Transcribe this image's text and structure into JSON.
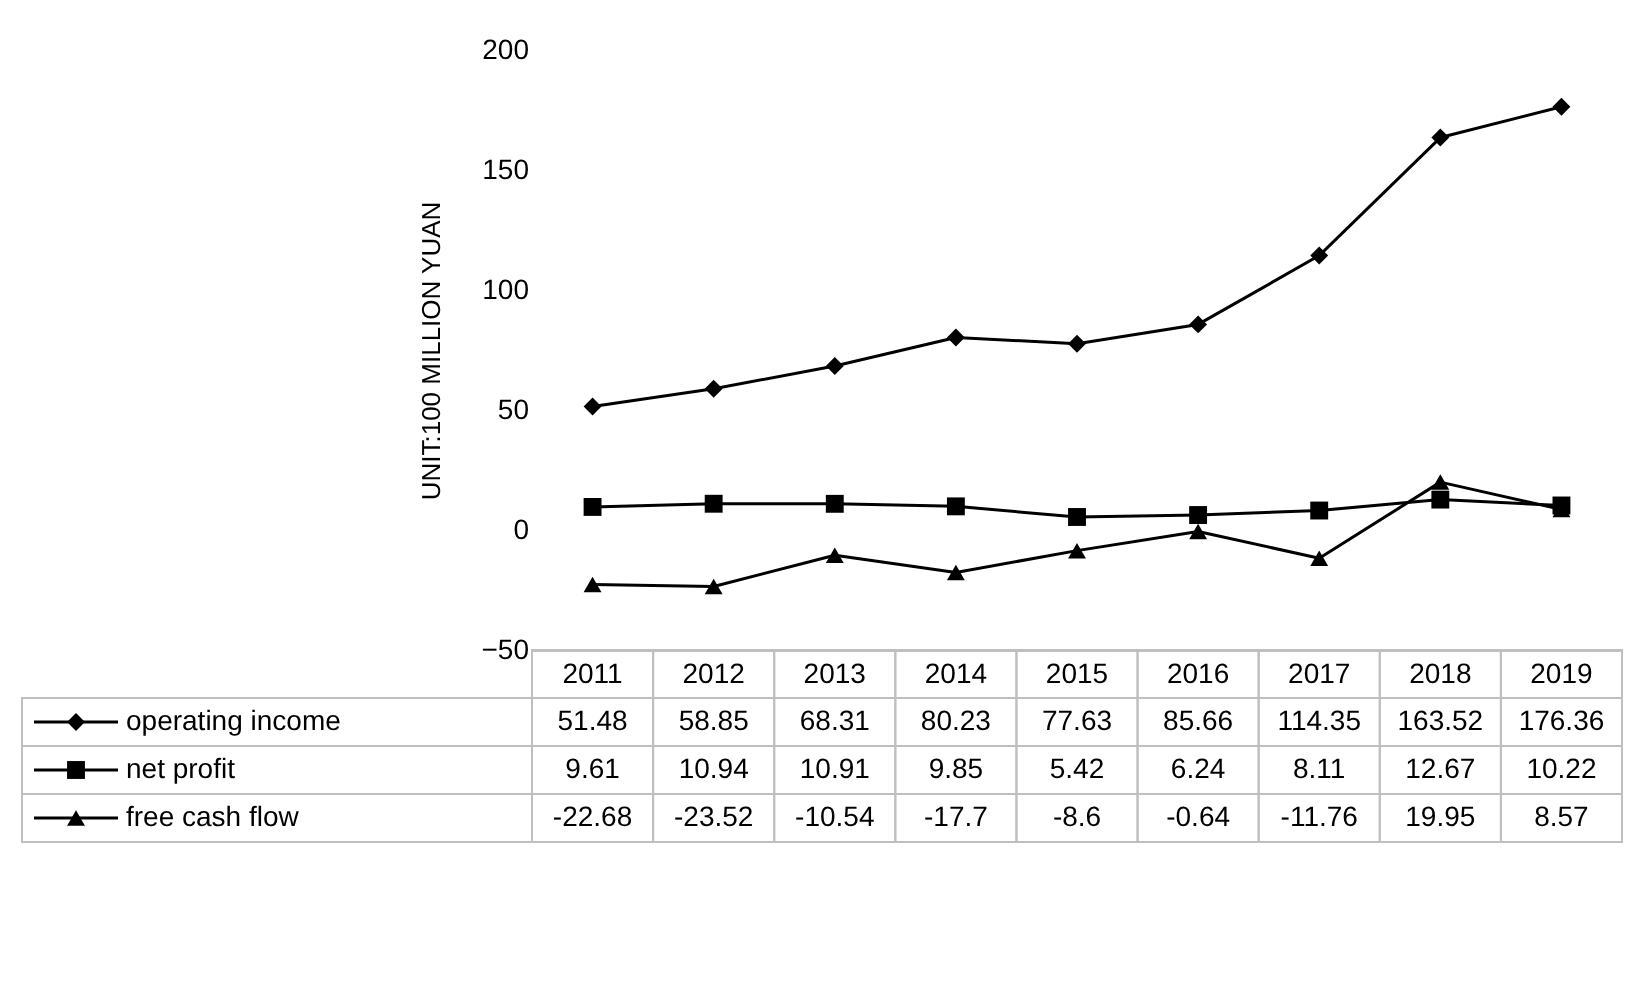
{
  "chart_data": {
    "type": "line",
    "ylabel": "UNIT:100 MILLION YUAN",
    "categories": [
      "2011",
      "2012",
      "2013",
      "2014",
      "2015",
      "2016",
      "2017",
      "2018",
      "2019"
    ],
    "ylim": [
      -50,
      200
    ],
    "yticks": [
      -50,
      0,
      50,
      100,
      150,
      200
    ],
    "grid": false,
    "legend": "bottom",
    "data_labels": true,
    "line_style": "solid",
    "series": [
      {
        "name": "operating income",
        "color": "#000000",
        "marker": "diamond",
        "values": [
          51.48,
          58.85,
          68.31,
          80.23,
          77.63,
          85.66,
          114.35,
          163.52,
          176.36
        ]
      },
      {
        "name": "net profit",
        "color": "#000000",
        "marker": "square",
        "values": [
          9.61,
          10.94,
          10.91,
          9.85,
          5.42,
          6.24,
          8.11,
          12.67,
          10.22
        ]
      },
      {
        "name": "free cash flow",
        "color": "#000000",
        "marker": "triangle",
        "values": [
          -22.68,
          -23.52,
          -10.54,
          -17.7,
          -8.6,
          -0.64,
          -11.76,
          19.95,
          8.57
        ]
      }
    ]
  }
}
